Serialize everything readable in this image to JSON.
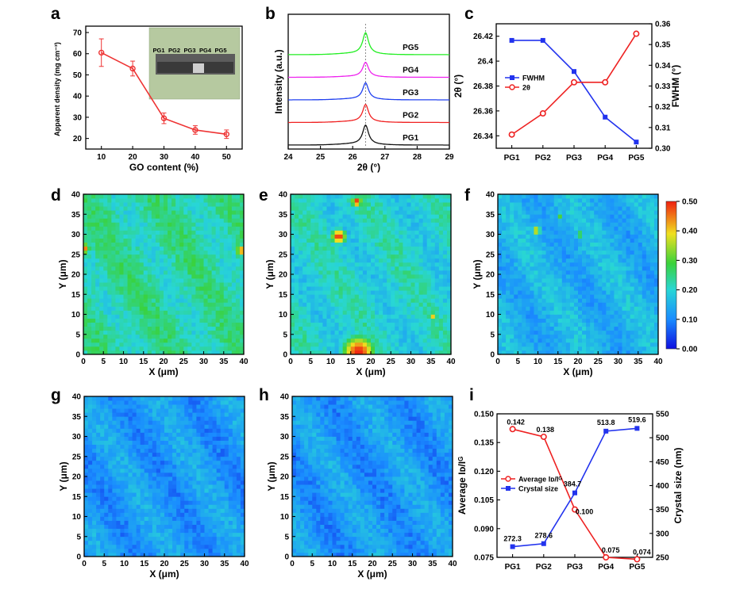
{
  "panels": {
    "a": {
      "label": "a"
    },
    "b": {
      "label": "b"
    },
    "c": {
      "label": "c"
    },
    "d": {
      "label": "d"
    },
    "e": {
      "label": "e"
    },
    "f": {
      "label": "f"
    },
    "g": {
      "label": "g"
    },
    "h": {
      "label": "h"
    },
    "i": {
      "label": "i"
    }
  },
  "chart_data": [
    {
      "id": "a",
      "type": "line",
      "xlabel": "GO content (%)",
      "ylabel": "Apparent density (mg cm⁻³)",
      "x": [
        10,
        20,
        30,
        40,
        50
      ],
      "y": [
        60.5,
        53,
        29.5,
        24,
        22
      ],
      "yerr": [
        6.5,
        3.5,
        2.5,
        2,
        2
      ],
      "xticks": [
        10,
        20,
        30,
        40,
        50
      ],
      "yticks": [
        20,
        30,
        40,
        50,
        60,
        70
      ],
      "xlim": [
        5,
        55
      ],
      "ylim": [
        15,
        73
      ],
      "color": "#ee3333",
      "inset_photo_labels": [
        "PG1",
        "PG2",
        "PG3",
        "PG4",
        "PG5"
      ],
      "inset_label_colors": [
        "#e8323a",
        "#2742d8",
        "#e8323a",
        "#2742d8",
        "#e8323a"
      ]
    },
    {
      "id": "b",
      "type": "line",
      "xlabel": "2θ (°)",
      "ylabel": "Intensity (a.u.)",
      "xticks": [
        24,
        25,
        26,
        27,
        28,
        29
      ],
      "xlim": [
        24,
        29
      ],
      "peak_position": 26.4,
      "series": [
        {
          "name": "PG1",
          "color": "#111111",
          "offset": 0,
          "peak": 1.0
        },
        {
          "name": "PG2",
          "color": "#f02020",
          "offset": 1,
          "peak": 0.9
        },
        {
          "name": "PG3",
          "color": "#2040f0",
          "offset": 2,
          "peak": 0.85
        },
        {
          "name": "PG4",
          "color": "#ee22ee",
          "offset": 3,
          "peak": 0.75
        },
        {
          "name": "PG5",
          "color": "#22ee22",
          "offset": 4,
          "peak": 1.1
        }
      ]
    },
    {
      "id": "c",
      "type": "line",
      "categories": [
        "PG1",
        "PG2",
        "PG3",
        "PG4",
        "PG5"
      ],
      "ylabel": "2θ (°)",
      "y2label": "FWHM (°)",
      "yticks": [
        26.34,
        26.36,
        26.38,
        26.4,
        26.42
      ],
      "ylim": [
        26.33,
        26.43
      ],
      "y2ticks": [
        0.3,
        0.31,
        0.32,
        0.33,
        0.34,
        0.35,
        0.36
      ],
      "y2lim": [
        0.3,
        0.36
      ],
      "series": [
        {
          "name": "FWHM",
          "axis": "right",
          "color": "#2233ee",
          "marker": "square",
          "values": [
            0.352,
            0.352,
            0.337,
            0.315,
            0.303
          ]
        },
        {
          "name": "2θ",
          "axis": "left",
          "color": "#ee2222",
          "marker": "circle",
          "values": [
            26.341,
            26.358,
            26.383,
            26.383,
            26.422
          ]
        }
      ],
      "legend": "left"
    },
    {
      "id": "d",
      "type": "heatmap",
      "xlabel": "X (μm)",
      "ylabel": "Y (μm)",
      "xticks": [
        0,
        5,
        10,
        15,
        20,
        25,
        30,
        35,
        40
      ],
      "yticks": [
        0,
        5,
        10,
        15,
        20,
        25,
        30,
        35,
        40
      ],
      "base": 0.23,
      "hotspots": [
        [
          0.3,
          26.5,
          1.2,
          0.45
        ],
        [
          39.4,
          26,
          1.2,
          0.45
        ]
      ]
    },
    {
      "id": "e",
      "type": "heatmap",
      "xlabel": "X (μm)",
      "ylabel": "Y (μm)",
      "xticks": [
        0,
        5,
        10,
        15,
        20,
        25,
        30,
        35,
        40
      ],
      "yticks": [
        0,
        5,
        10,
        15,
        20,
        25,
        30,
        35,
        40
      ],
      "base": 0.2,
      "hotspots": [
        [
          12,
          29.5,
          1.6,
          0.5
        ],
        [
          16.5,
          38.2,
          1.1,
          0.5
        ],
        [
          35.5,
          9.5,
          1.0,
          0.4
        ],
        [
          17,
          0.6,
          3.5,
          0.5
        ]
      ]
    },
    {
      "id": "f",
      "type": "heatmap",
      "xlabel": "X (μm)",
      "ylabel": "Y (μm)",
      "xticks": [
        0,
        5,
        10,
        15,
        20,
        25,
        30,
        35,
        40
      ],
      "yticks": [
        0,
        5,
        10,
        15,
        20,
        25,
        30,
        35,
        40
      ],
      "base": 0.15,
      "hotspots": [
        [
          9.6,
          31,
          0.9,
          0.42
        ],
        [
          15.5,
          34.5,
          0.8,
          0.3
        ],
        [
          20.2,
          30,
          0.6,
          0.42
        ]
      ],
      "colorbar_ticks": [
        "0.00",
        "0.10",
        "0.20",
        "0.30",
        "0.40",
        "0.50"
      ],
      "colorbar_range": [
        0,
        0.5
      ]
    },
    {
      "id": "g",
      "type": "heatmap",
      "xlabel": "X (μm)",
      "ylabel": "Y (μm)",
      "xticks": [
        0,
        5,
        10,
        15,
        20,
        25,
        30,
        35,
        40
      ],
      "yticks": [
        0,
        5,
        10,
        15,
        20,
        25,
        30,
        35,
        40
      ],
      "base": 0.12,
      "hotspots": []
    },
    {
      "id": "h",
      "type": "heatmap",
      "xlabel": "X (μm)",
      "ylabel": "Y (μm)",
      "xticks": [
        0,
        5,
        10,
        15,
        20,
        25,
        30,
        35,
        40
      ],
      "yticks": [
        0,
        5,
        10,
        15,
        20,
        25,
        30,
        35,
        40
      ],
      "base": 0.12,
      "hotspots": []
    },
    {
      "id": "i",
      "type": "line",
      "categories": [
        "PG1",
        "PG2",
        "PG3",
        "PG4",
        "PG5"
      ],
      "ylabel": "Average I_D/I_G",
      "y2label": "Crystal size (nm)",
      "yticks": [
        "0.075",
        "0.090",
        "0.105",
        "0.120",
        "0.135",
        "0.150"
      ],
      "ylim": [
        0.075,
        0.15
      ],
      "y2ticks": [
        250,
        300,
        350,
        400,
        450,
        500,
        550
      ],
      "y2lim": [
        250,
        550
      ],
      "series": [
        {
          "name": "Average I_D/I_G",
          "axis": "left",
          "color": "#ee2222",
          "marker": "circle",
          "values": [
            0.142,
            0.138,
            0.1,
            0.075,
            0.074
          ],
          "labels": [
            "0.142",
            "0.138",
            "0.100",
            "0.075",
            "0.074"
          ]
        },
        {
          "name": "Crystal size",
          "axis": "right",
          "color": "#2233ee",
          "marker": "square",
          "values": [
            272.3,
            278.6,
            384.7,
            513.8,
            519.6
          ],
          "labels": [
            "272.3",
            "278.6",
            "384.7",
            "513.8",
            "519.6"
          ]
        }
      ],
      "legend": "center-left"
    }
  ]
}
